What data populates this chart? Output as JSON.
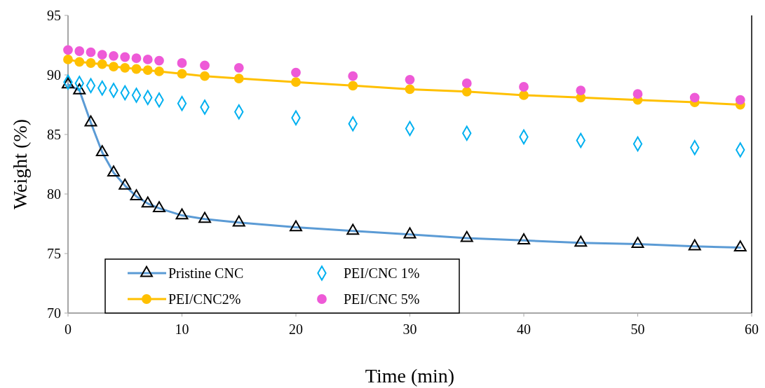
{
  "chart_data": {
    "type": "line",
    "xlabel": "Time (min)",
    "ylabel": "Weight (%)",
    "x": [
      0,
      1,
      2,
      3,
      4,
      5,
      6,
      7,
      8,
      10,
      12,
      15,
      20,
      25,
      30,
      35,
      40,
      45,
      50,
      55,
      59
    ],
    "xlim": [
      0,
      60
    ],
    "xticks": [
      0,
      10,
      20,
      30,
      40,
      50,
      60
    ],
    "ylim": [
      70,
      95
    ],
    "yticks": [
      70,
      75,
      80,
      85,
      90,
      95
    ],
    "legend": "bottom left",
    "series": [
      {
        "name": "Pristine CNC",
        "marker": "triangle",
        "color": "#000000",
        "values": [
          89.2,
          88.7,
          86.0,
          83.5,
          81.8,
          80.7,
          79.8,
          79.2,
          78.8,
          78.2,
          77.9,
          77.6,
          77.2,
          76.9,
          76.6,
          76.3,
          76.1,
          75.9,
          75.8,
          75.6,
          75.5
        ]
      },
      {
        "name": "PEI/CNC 1%",
        "type": "scatter",
        "marker": "diamond",
        "color": "#00b0f0",
        "values": [
          89.4,
          89.3,
          89.1,
          88.9,
          88.7,
          88.5,
          88.3,
          88.1,
          87.9,
          87.6,
          87.3,
          86.9,
          86.4,
          85.9,
          85.5,
          85.1,
          84.8,
          84.5,
          84.2,
          83.9,
          83.7
        ]
      },
      {
        "name": "PEI/CNC2%",
        "marker": "circle",
        "color": "#ffc000",
        "values": [
          91.3,
          91.1,
          91.0,
          90.9,
          90.7,
          90.6,
          90.5,
          90.4,
          90.3,
          90.1,
          89.9,
          89.7,
          89.4,
          89.1,
          88.8,
          88.6,
          88.3,
          88.1,
          87.9,
          87.7,
          87.5
        ]
      },
      {
        "name": "PEI/CNC 5%",
        "type": "scatter",
        "marker": "circle",
        "color": "#ee5ad7",
        "values": [
          92.1,
          92.0,
          91.9,
          91.7,
          91.6,
          91.5,
          91.4,
          91.3,
          91.2,
          91.0,
          90.8,
          90.6,
          90.2,
          89.9,
          89.6,
          89.3,
          89.0,
          88.7,
          88.4,
          88.1,
          87.9
        ]
      }
    ]
  }
}
